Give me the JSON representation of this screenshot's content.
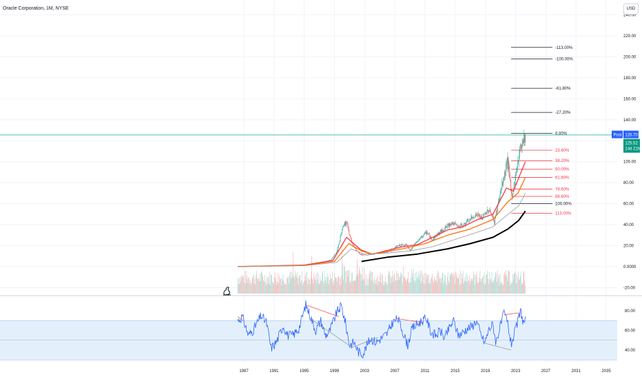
{
  "header": {
    "title": "Oracle Corporation, 1M, NYSE"
  },
  "currency_button": "USD",
  "price_tags": {
    "post_label": "Post",
    "post_value": "125.70",
    "last_value": "125.52",
    "countdown": "14d 21h"
  },
  "colors": {
    "up": "#26a69a",
    "down": "#ef5350",
    "rsi": "#2962ff",
    "fib_black": "#131722",
    "fib_red": "#f23645",
    "ema_red": "#f23645",
    "ema_orange": "#ff6d00",
    "sma_gray": "#9598a1",
    "trend_black": "#000000",
    "rsi_band": "#e3f0fc",
    "post_tag": "#2962ff",
    "last_tag": "#089981",
    "hline": "#26a69a"
  },
  "chart_data": [
    {
      "type": "candlestick",
      "title": "Oracle Corporation, 1M, NYSE",
      "x_axis_ticks": [
        "1987",
        "1991",
        "1995",
        "1999",
        "2003",
        "2007",
        "2011",
        "2015",
        "2019",
        "2023",
        "2027",
        "2031",
        "2035"
      ],
      "y_axis_ticks": [
        "240.00",
        "220.00",
        "200.00",
        "180.00",
        "160.00",
        "140.00",
        "120.00",
        "100.00",
        "80.00",
        "60.00",
        "40.00",
        "20.00",
        "0.0000",
        "-20.00"
      ],
      "ylim": [
        -20,
        240
      ],
      "price_anchors": [
        [
          1986.2,
          0.1
        ],
        [
          1990,
          0.8
        ],
        [
          1995,
          1.8
        ],
        [
          1997.5,
          4
        ],
        [
          1998.6,
          7
        ],
        [
          1999.3,
          14
        ],
        [
          1999.7,
          25
        ],
        [
          2000.2,
          40
        ],
        [
          2000.6,
          42
        ],
        [
          2001.0,
          30
        ],
        [
          2001.5,
          20
        ],
        [
          2002.3,
          12
        ],
        [
          2003,
          11
        ],
        [
          2004,
          12
        ],
        [
          2006,
          14
        ],
        [
          2007.5,
          20
        ],
        [
          2008.5,
          21
        ],
        [
          2009.0,
          15
        ],
        [
          2009.7,
          22
        ],
        [
          2011.2,
          33
        ],
        [
          2011.9,
          26
        ],
        [
          2013,
          33
        ],
        [
          2014.5,
          42
        ],
        [
          2015.5,
          38
        ],
        [
          2016.2,
          40
        ],
        [
          2017.8,
          50
        ],
        [
          2018.5,
          46
        ],
        [
          2019.5,
          55
        ],
        [
          2020.2,
          42
        ],
        [
          2020.6,
          58
        ],
        [
          2021.6,
          90
        ],
        [
          2021.9,
          105
        ],
        [
          2022.5,
          65
        ],
        [
          2022.9,
          82
        ],
        [
          2023.5,
          110
        ],
        [
          2024.0,
          123
        ],
        [
          2024.3,
          125
        ]
      ],
      "moving_averages": [
        {
          "name": "ema_fast",
          "color_key": "ema_red",
          "points": [
            [
              1986.2,
              0.1
            ],
            [
              1995,
              1.5
            ],
            [
              1998.8,
              6
            ],
            [
              2000.6,
              28
            ],
            [
              2002.5,
              16
            ],
            [
              2004,
              12
            ],
            [
              2008,
              19
            ],
            [
              2010,
              21
            ],
            [
              2012,
              28
            ],
            [
              2014,
              35
            ],
            [
              2016,
              38
            ],
            [
              2018,
              45
            ],
            [
              2020,
              50
            ],
            [
              2021.8,
              75
            ],
            [
              2022.7,
              72
            ],
            [
              2023.6,
              88
            ],
            [
              2024.3,
              100
            ]
          ]
        },
        {
          "name": "ema_mid",
          "color_key": "ema_orange",
          "points": [
            [
              1986.2,
              0.1
            ],
            [
              1995,
              1.2
            ],
            [
              1999,
              5
            ],
            [
              2000.9,
              22
            ],
            [
              2002.6,
              15
            ],
            [
              2004,
              12
            ],
            [
              2008,
              17
            ],
            [
              2011,
              22
            ],
            [
              2014,
              30
            ],
            [
              2017,
              36
            ],
            [
              2020,
              45
            ],
            [
              2022,
              62
            ],
            [
              2023.3,
              70
            ],
            [
              2024.3,
              85
            ]
          ]
        },
        {
          "name": "sma_long",
          "color_key": "sma_gray",
          "points": [
            [
              1986.2,
              0.1
            ],
            [
              1995,
              1
            ],
            [
              1999.3,
              4
            ],
            [
              2001.2,
              17
            ],
            [
              2003,
              12
            ],
            [
              2006,
              13
            ],
            [
              2009,
              15
            ],
            [
              2012,
              19
            ],
            [
              2015,
              26
            ],
            [
              2018,
              33
            ],
            [
              2020,
              38
            ],
            [
              2022,
              50
            ],
            [
              2023.4,
              58
            ],
            [
              2024.3,
              70
            ]
          ]
        },
        {
          "name": "trend_line",
          "color_key": "trend_black",
          "points": [
            [
              2002.6,
              5
            ],
            [
              2006,
              9
            ],
            [
              2010,
              12
            ],
            [
              2014,
              17
            ],
            [
              2017,
              22
            ],
            [
              2020,
              28
            ],
            [
              2022,
              36
            ],
            [
              2023.4,
              44
            ],
            [
              2024.3,
              53
            ]
          ]
        }
      ],
      "fib_levels": [
        {
          "label": "-113.00%",
          "value": 209,
          "color_key": "fib_black"
        },
        {
          "label": "-100.00%",
          "value": 198,
          "color_key": "fib_black"
        },
        {
          "label": "-61.80%",
          "value": 170,
          "color_key": "fib_black"
        },
        {
          "label": "-27.20%",
          "value": 147,
          "color_key": "fib_black"
        },
        {
          "label": "0.00%",
          "value": 127,
          "color_key": "fib_black"
        },
        {
          "label": "23.60%",
          "value": 111,
          "color_key": "fib_red"
        },
        {
          "label": "38.20%",
          "value": 101,
          "color_key": "fib_red"
        },
        {
          "label": "50.00%",
          "value": 93,
          "color_key": "fib_red"
        },
        {
          "label": "61.80%",
          "value": 85,
          "color_key": "fib_red"
        },
        {
          "label": "78.60%",
          "value": 74,
          "color_key": "fib_red"
        },
        {
          "label": "88.60%",
          "value": 67,
          "color_key": "fib_red"
        },
        {
          "label": "100.00%",
          "value": 60,
          "color_key": "fib_black"
        },
        {
          "label": "113.00%",
          "value": 51,
          "color_key": "fib_red"
        }
      ],
      "current_price": 125.52,
      "post_price": 125.7
    },
    {
      "type": "line",
      "name": "RSI",
      "y_axis_ticks": [
        "80.00",
        "60.00",
        "40.00"
      ],
      "ylim": [
        30,
        95
      ],
      "band": [
        30,
        70
      ],
      "midline": 50,
      "rsi_anchors": [
        [
          1986.2,
          70
        ],
        [
          1986.8,
          74
        ],
        [
          1987.6,
          55
        ],
        [
          1988.2,
          60
        ],
        [
          1989.3,
          75
        ],
        [
          1990.0,
          68
        ],
        [
          1990.6,
          42
        ],
        [
          1991.3,
          48
        ],
        [
          1992.2,
          65
        ],
        [
          1992.8,
          55
        ],
        [
          1993.5,
          55
        ],
        [
          1994.3,
          62
        ],
        [
          1995.2,
          86
        ],
        [
          1995.8,
          75
        ],
        [
          1996.5,
          60
        ],
        [
          1997.2,
          70
        ],
        [
          1997.8,
          55
        ],
        [
          1998.3,
          58
        ],
        [
          1998.8,
          68
        ],
        [
          1999.3,
          78
        ],
        [
          1999.9,
          85
        ],
        [
          2000.4,
          70
        ],
        [
          2001.0,
          45
        ],
        [
          2001.6,
          48
        ],
        [
          2002.2,
          38
        ],
        [
          2002.8,
          36
        ],
        [
          2003.3,
          45
        ],
        [
          2003.8,
          52
        ],
        [
          2004.5,
          48
        ],
        [
          2005.2,
          52
        ],
        [
          2006.0,
          57
        ],
        [
          2006.7,
          68
        ],
        [
          2007.4,
          72
        ],
        [
          2008.0,
          60
        ],
        [
          2008.7,
          45
        ],
        [
          2009.3,
          62
        ],
        [
          2009.9,
          66
        ],
        [
          2010.6,
          70
        ],
        [
          2011.2,
          72
        ],
        [
          2011.8,
          58
        ],
        [
          2012.5,
          55
        ],
        [
          2013.0,
          60
        ],
        [
          2013.6,
          52
        ],
        [
          2014.2,
          62
        ],
        [
          2014.8,
          70
        ],
        [
          2015.4,
          55
        ],
        [
          2016.0,
          58
        ],
        [
          2016.6,
          62
        ],
        [
          2017.2,
          64
        ],
        [
          2017.8,
          70
        ],
        [
          2018.3,
          58
        ],
        [
          2018.9,
          47
        ],
        [
          2019.5,
          62
        ],
        [
          2020.0,
          66
        ],
        [
          2020.4,
          48
        ],
        [
          2020.9,
          62
        ],
        [
          2021.5,
          78
        ],
        [
          2022.0,
          66
        ],
        [
          2022.4,
          46
        ],
        [
          2022.8,
          55
        ],
        [
          2023.4,
          72
        ],
        [
          2023.7,
          80
        ],
        [
          2024.0,
          68
        ],
        [
          2024.3,
          70
        ]
      ],
      "divergence_lines": [
        {
          "color_key": "down",
          "points": [
            [
              1986.2,
              74
            ],
            [
              1986.9,
              70
            ]
          ]
        },
        {
          "color_key": "down",
          "points": [
            [
              1995.2,
              86
            ],
            [
              1999.6,
              74
            ]
          ]
        },
        {
          "color_key": "sma_gray",
          "points": [
            [
              1995.8,
              72
            ],
            [
              2001.1,
              44
            ]
          ]
        },
        {
          "color_key": "down",
          "points": [
            [
              2007.3,
              72
            ],
            [
              2010.8,
              68
            ]
          ]
        },
        {
          "color_key": "down",
          "points": [
            [
              2021.5,
              76
            ],
            [
              2023.6,
              78
            ]
          ]
        },
        {
          "color_key": "sma_gray",
          "points": [
            [
              2001.1,
              42
            ],
            [
              2004.8,
              53
            ]
          ]
        },
        {
          "color_key": "sma_gray",
          "points": [
            [
              2018.9,
              47
            ],
            [
              2022.4,
              40
            ]
          ]
        }
      ]
    }
  ]
}
